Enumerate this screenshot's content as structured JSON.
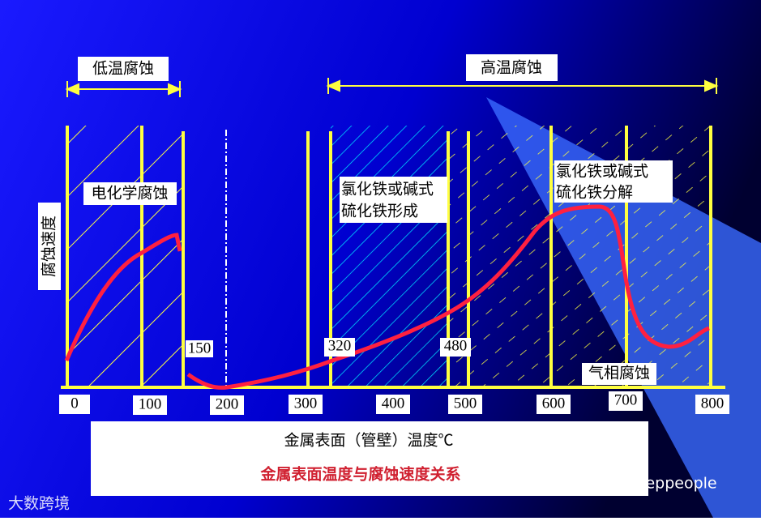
{
  "header": {
    "low_temp": "低温腐蚀",
    "high_temp": "高温腐蚀"
  },
  "y_label": "腐蚀速度",
  "zones": {
    "electro": "电化学腐蚀",
    "formation": [
      "氯化铁或碱式",
      "硫化铁形成"
    ],
    "decomposition": [
      "氯化铁或碱式",
      "硫化铁分解"
    ],
    "gas": "气相腐蚀"
  },
  "boundaries": [
    "150",
    "320",
    "480"
  ],
  "x_labels": [
    "0",
    "100",
    "200",
    "300",
    "400",
    "500",
    "600",
    "700",
    "800"
  ],
  "x_title": "金属表面（管壁）温度℃",
  "caption": "金属表面温度与腐蚀速度关系",
  "watermarks": {
    "left": "大数跨境",
    "right": "微信号: eppeople"
  }
}
